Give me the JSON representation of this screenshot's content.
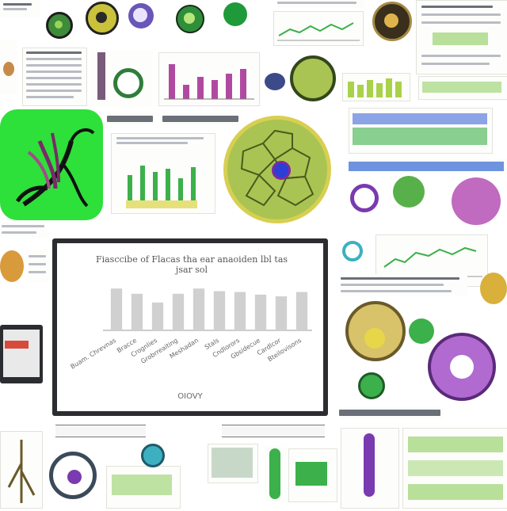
{
  "colors": {
    "cell_green": "#a9c452",
    "cell_membrane": "#d8cf52",
    "nucleus": "#2b3fd6",
    "leaf_panel": "#2ee03a",
    "bar_gray": "#d0d0d0",
    "bar_magenta": "#b04aa0",
    "accent_blue": "#3d6fd6",
    "accent_green": "#3cb04a"
  },
  "icons": [
    "plant-cell-icon",
    "microscope-icon",
    "root-system-icon",
    "leaf-icon",
    "cell-nucleus-icon",
    "monitor-icon",
    "chromosome-icon"
  ],
  "central_chart": {
    "caption": "",
    "chart_data": {
      "type": "bar",
      "title": "Fiasccibe of Flacas tha ear anaoiden lbl tas jsar sol",
      "categories": [
        "Buam. Chrevnas",
        "Bracce",
        "Crognlies",
        "Grobrreaiting",
        "Meshadan",
        "Stals",
        "Cndlorors",
        "Gbsidecue",
        "Cardlcor",
        "Bteilovisons"
      ],
      "values": [
        4.8,
        4.2,
        3.2,
        4.2,
        4.8,
        4.5,
        4.4,
        4.1,
        3.9,
        4.4
      ],
      "xlabel": "OIOVY",
      "ylabel": "",
      "ylim": [
        0,
        6
      ]
    }
  }
}
